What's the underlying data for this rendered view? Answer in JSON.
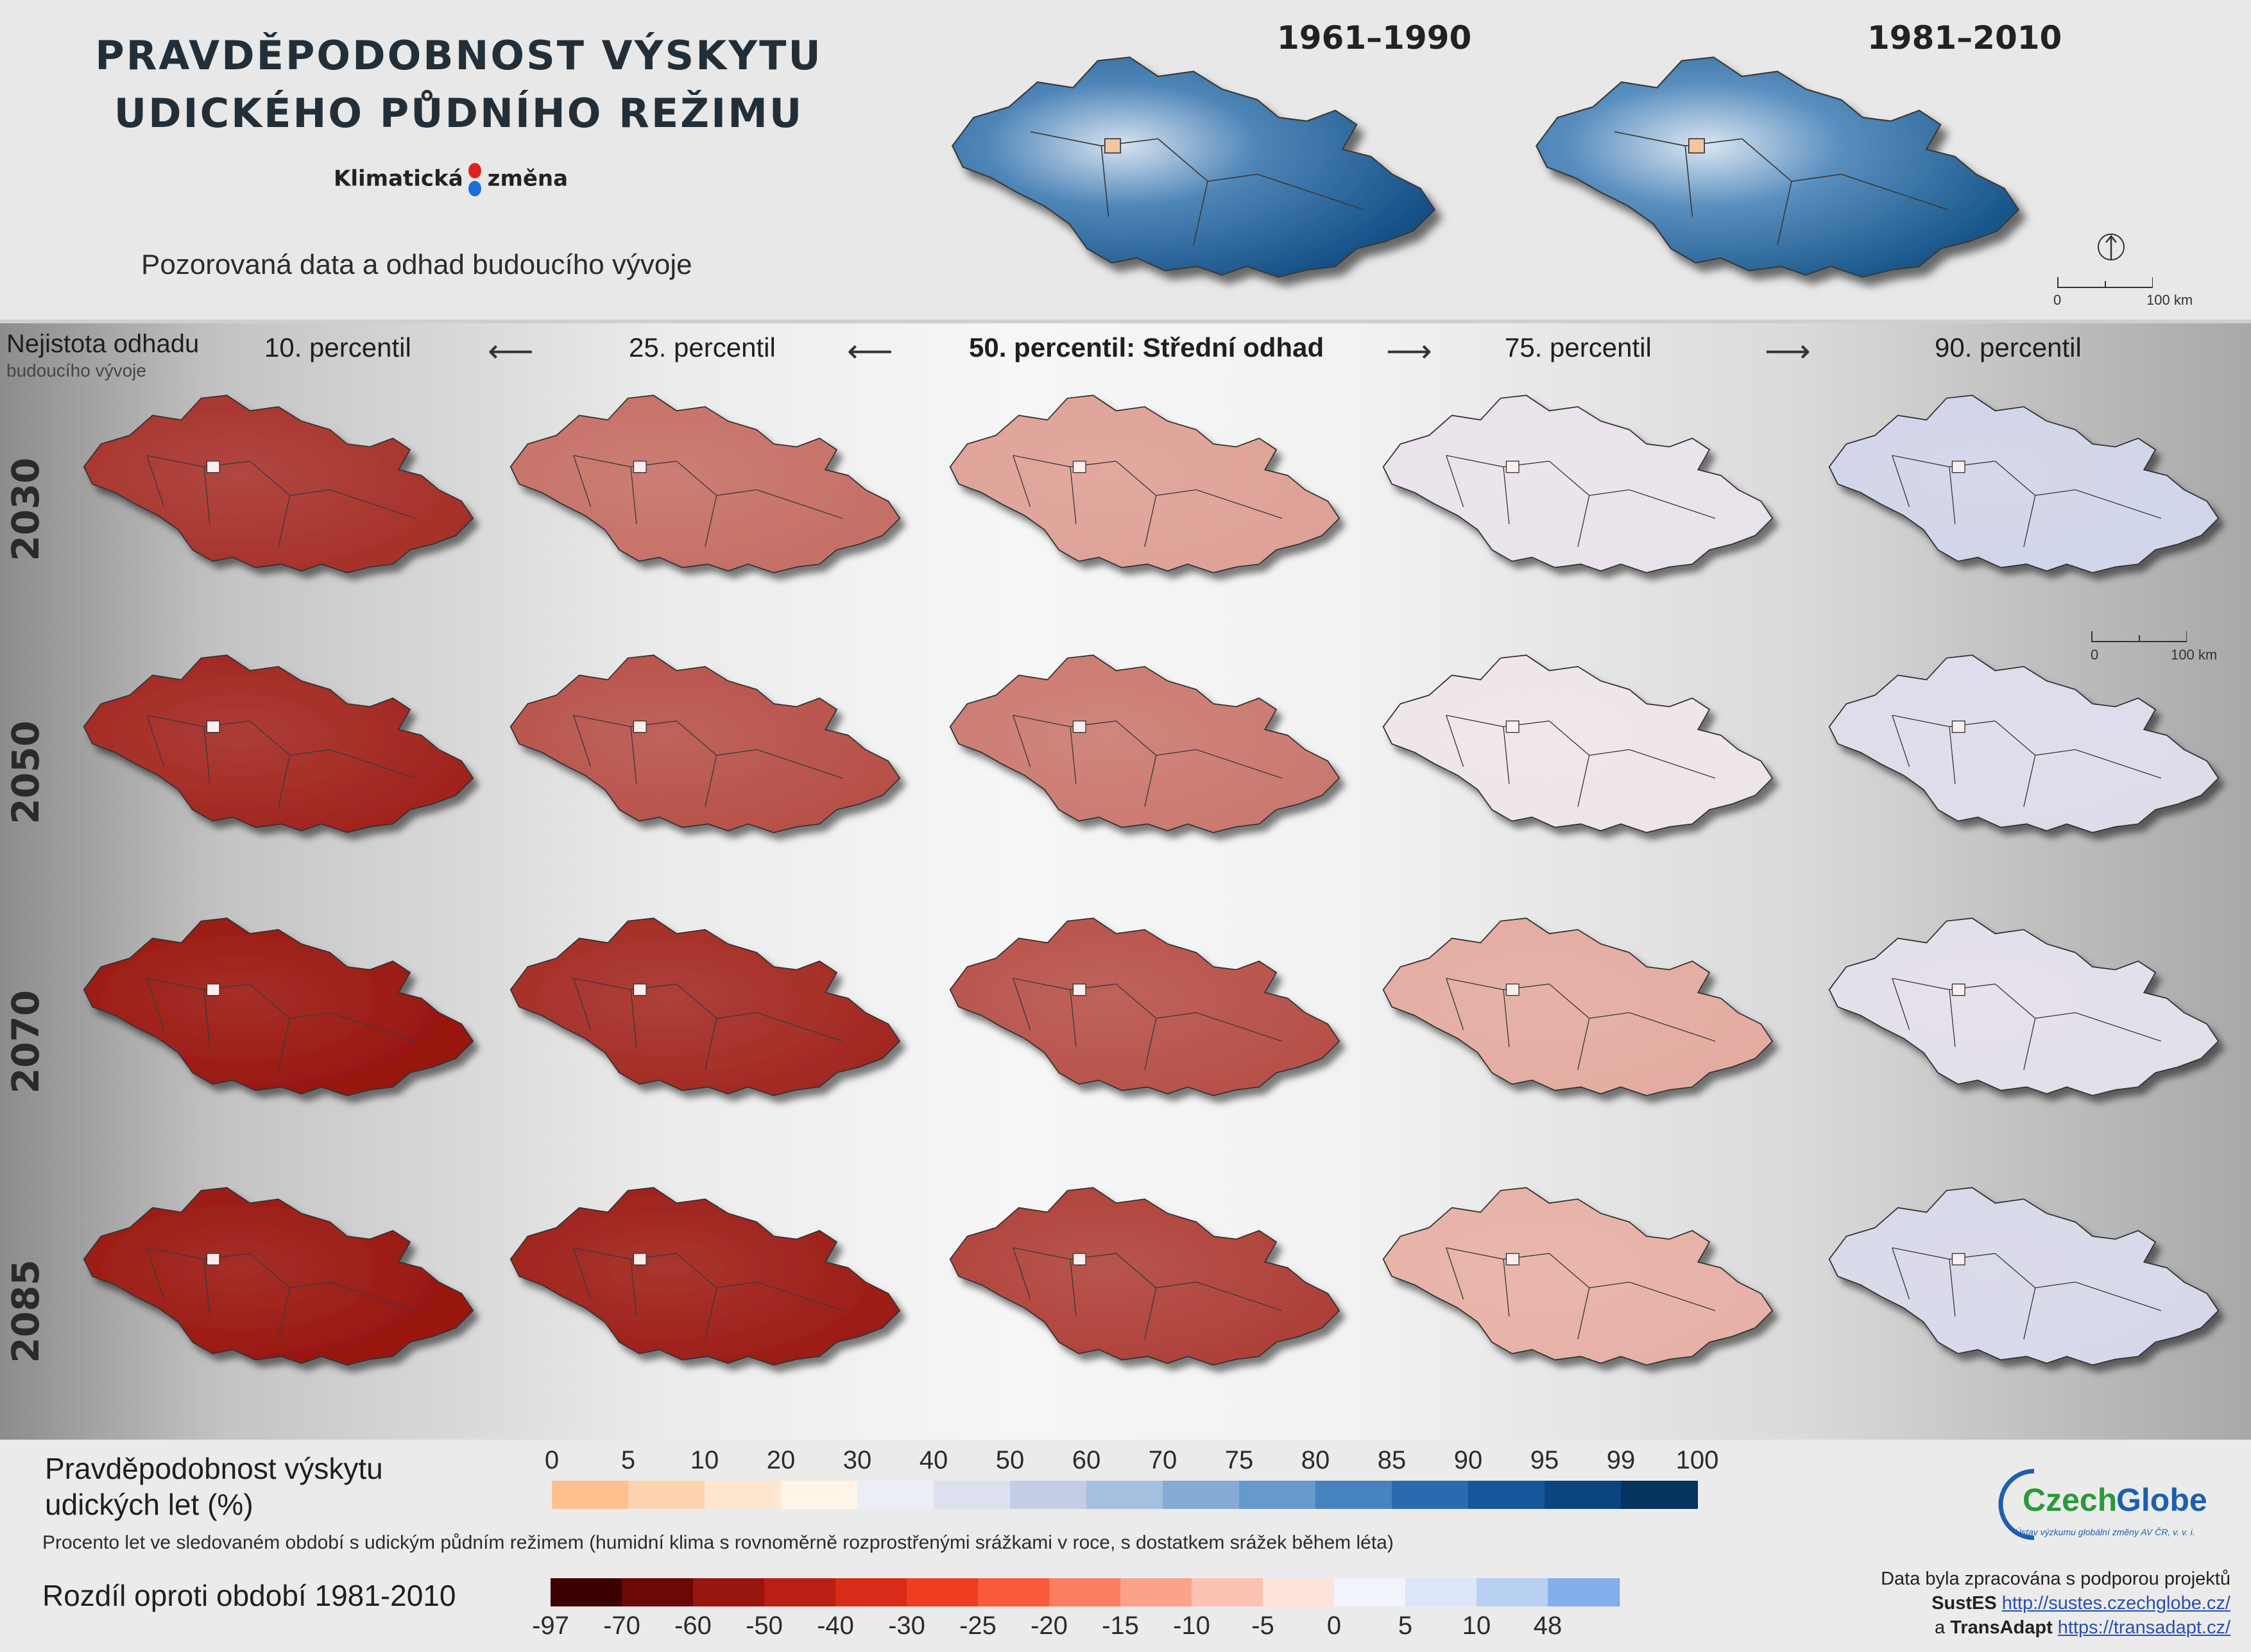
{
  "header": {
    "title_line1": "PRAVDĚPODOBNOST VÝSKYTU",
    "title_line2": "UDICKÉHO PŮDNÍHO REŽIMU",
    "brand_left": "Klimatická",
    "brand_right": "změna",
    "subtitle": "Pozorovaná data a odhad budoucího vývoje",
    "observed_periods": [
      "1961–1990",
      "1981–2010"
    ],
    "scale_labels": [
      "0",
      "100 km"
    ]
  },
  "grid": {
    "uncertainty_title": "Nejistota odhadu",
    "uncertainty_subtitle": "budoucího vývoje",
    "percentiles": [
      "10. percentil",
      "25. percentil",
      "50. percentil: Střední odhad",
      "75. percentil",
      "90. percentil"
    ],
    "years": [
      "2030",
      "2050",
      "2070",
      "2085"
    ],
    "scale_labels": [
      "0",
      "100 km"
    ],
    "map_tint": [
      [
        0.86,
        0.55,
        0.3,
        -0.15,
        -0.35
      ],
      [
        0.92,
        0.7,
        0.5,
        -0.1,
        -0.25
      ],
      [
        1.0,
        0.9,
        0.7,
        0.25,
        -0.2
      ],
      [
        1.0,
        0.96,
        0.78,
        0.22,
        -0.3
      ]
    ]
  },
  "legend": {
    "probability_title_line1": "Pravděpodobnost výskytu",
    "probability_title_line2": "udických let (%)",
    "probability_ticks": [
      "0",
      "5",
      "10",
      "20",
      "30",
      "40",
      "50",
      "60",
      "70",
      "75",
      "80",
      "85",
      "90",
      "95",
      "99",
      "100"
    ],
    "probability_colors": [
      "#fdc08e",
      "#fdd3b0",
      "#fee6d0",
      "#fff5e8",
      "#eceef7",
      "#dde0ef",
      "#c3cde6",
      "#a6bfde",
      "#86acd5",
      "#6699cc",
      "#4782c0",
      "#2a6bb0",
      "#15569b",
      "#0b457f",
      "#06335f"
    ],
    "note": "Procento let ve sledovaném období s udickým půdním režimem (humidní klima s rovnoměrně rozprostřenými srážkami v roce, s dostatkem srážek během léta)",
    "difference_title": "Rozdíl oproti období 1981-2010",
    "difference_ticks": [
      "-97",
      "-70",
      "-60",
      "-50",
      "-40",
      "-30",
      "-25",
      "-20",
      "-15",
      "-10",
      "-5",
      "0",
      "5",
      "10",
      "48"
    ],
    "difference_colors": [
      "#3d0000",
      "#6b0808",
      "#981510",
      "#bb1e12",
      "#d92c18",
      "#ef3d22",
      "#f95a3c",
      "#fb7d62",
      "#fca18a",
      "#fcc2b1",
      "#fde3da",
      "#f2f4fc",
      "#dce6f8",
      "#b8d0f2",
      "#84afec"
    ]
  },
  "credits": {
    "logo": "CzechGlobe",
    "logo_sub": "Ústav výzkumu globální změny AV ČR, v. v. i.",
    "line1": "Data byla zpracována s podporou projektů",
    "project1": "SustES",
    "link1": "http://sustes.czechglobe.cz/",
    "joiner": "a",
    "project2": "TransAdapt",
    "link2": "https://transadapt.cz/"
  }
}
